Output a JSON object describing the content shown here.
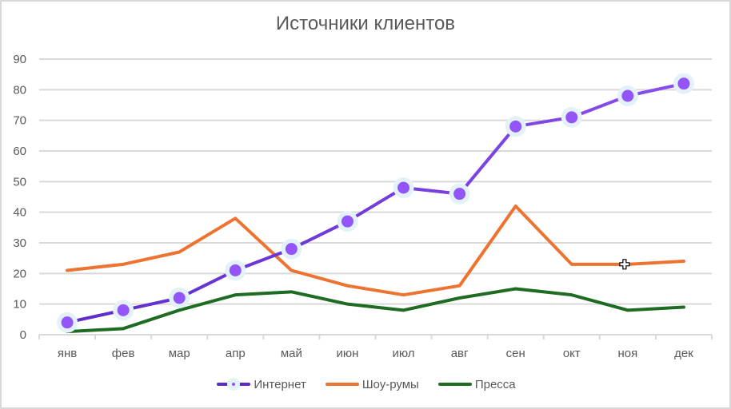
{
  "chart_data": {
    "type": "line",
    "title": "Источники клиентов",
    "xlabel": "",
    "ylabel": "",
    "categories": [
      "янв",
      "фев",
      "мар",
      "апр",
      "май",
      "июн",
      "июл",
      "авг",
      "сен",
      "окт",
      "ноя",
      "дек"
    ],
    "series": [
      {
        "name": "Интернет",
        "color": "#8b4ff0",
        "color_start": "#5b2bc9",
        "markers": true,
        "values": [
          4,
          8,
          12,
          21,
          28,
          37,
          48,
          46,
          68,
          71,
          78,
          82
        ]
      },
      {
        "name": "Шоу-румы",
        "color": "#ed7330",
        "markers": false,
        "values": [
          21,
          23,
          27,
          38,
          21,
          16,
          13,
          16,
          42,
          23,
          23,
          24
        ]
      },
      {
        "name": "Пресса",
        "color": "#1e6b22",
        "markers": false,
        "values": [
          1,
          2,
          8,
          13,
          14,
          10,
          8,
          12,
          15,
          13,
          8,
          9
        ]
      }
    ],
    "ylim": [
      0,
      90
    ],
    "yticks": [
      0,
      10,
      20,
      30,
      40,
      50,
      60,
      70,
      80,
      90
    ],
    "grid": true,
    "legend_position": "bottom"
  },
  "colors": {
    "grid": "#d9d9d9",
    "text": "#595959",
    "marker_halo": "#e3f2fa",
    "marker_fill": "#9355f7"
  }
}
